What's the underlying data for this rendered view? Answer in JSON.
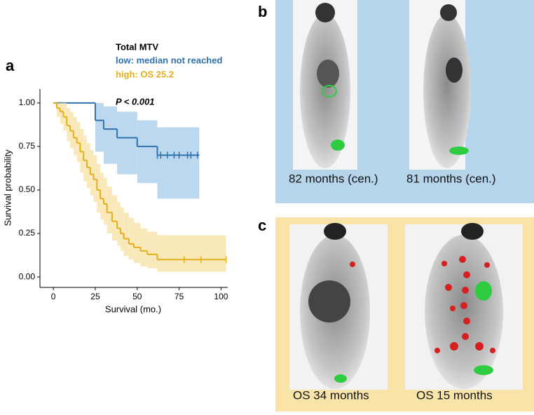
{
  "chart_data": {
    "type": "step",
    "panel_label": "a",
    "legend_title": "Total MTV",
    "annotation": "P < 0.001",
    "x_label": "Survival (mo.)",
    "y_label": "Survival probability",
    "xlim": [
      -8,
      104
    ],
    "xticks": [
      0,
      25,
      50,
      75,
      100
    ],
    "ylim": [
      -0.06,
      1.08
    ],
    "yticks": [
      {
        "value": 0,
        "label": "0.00"
      },
      {
        "value": 0.25,
        "label": "0.25"
      },
      {
        "value": 0.5,
        "label": "0.50"
      },
      {
        "value": 0.75,
        "label": "0.75"
      },
      {
        "value": 1,
        "label": "1.00"
      }
    ],
    "series": [
      {
        "name": "low: median not reached",
        "color": "#2f72ae",
        "band_color": "#a6cbe9",
        "x": [
          0,
          25,
          30,
          38,
          50,
          62,
          87
        ],
        "values": [
          1,
          0.9,
          0.85,
          0.8,
          0.75,
          0.7,
          0.7
        ],
        "lower": [
          1,
          0.72,
          0.65,
          0.59,
          0.54,
          0.45,
          0.45
        ],
        "upper": [
          1,
          1,
          0.98,
          0.95,
          0.9,
          0.86,
          0.86
        ],
        "censored": [
          62,
          64,
          68,
          72,
          75,
          80,
          82,
          86
        ]
      },
      {
        "name": "high: OS 25.2",
        "color": "#e2b01a",
        "band_color": "#f7e2a3",
        "x": [
          0,
          2,
          4,
          6,
          8,
          10,
          12,
          14,
          16,
          18,
          20,
          22,
          24,
          26,
          28,
          30,
          32,
          35,
          38,
          40,
          42,
          45,
          48,
          52,
          56,
          62,
          103
        ],
        "values": [
          1,
          0.97,
          0.95,
          0.92,
          0.87,
          0.84,
          0.8,
          0.77,
          0.72,
          0.67,
          0.63,
          0.59,
          0.56,
          0.5,
          0.45,
          0.42,
          0.37,
          0.32,
          0.28,
          0.25,
          0.22,
          0.19,
          0.17,
          0.15,
          0.13,
          0.1,
          0.1
        ],
        "lower": [
          1,
          0.92,
          0.88,
          0.84,
          0.78,
          0.74,
          0.7,
          0.66,
          0.6,
          0.55,
          0.51,
          0.47,
          0.43,
          0.37,
          0.33,
          0.3,
          0.25,
          0.21,
          0.18,
          0.15,
          0.12,
          0.1,
          0.08,
          0.06,
          0.05,
          0.03,
          0.03
        ],
        "upper": [
          1,
          1,
          1,
          1,
          0.97,
          0.95,
          0.92,
          0.89,
          0.85,
          0.81,
          0.77,
          0.73,
          0.7,
          0.65,
          0.6,
          0.57,
          0.52,
          0.47,
          0.43,
          0.4,
          0.37,
          0.34,
          0.31,
          0.28,
          0.26,
          0.24,
          0.24
        ],
        "censored": [
          78,
          88,
          103
        ]
      }
    ]
  },
  "panel_b": {
    "label": "b",
    "captions": [
      "82 months (cen.)",
      "81 months (cen.)"
    ]
  },
  "panel_c": {
    "label": "c",
    "captions": [
      "OS 34 months",
      "OS 15 months"
    ]
  }
}
